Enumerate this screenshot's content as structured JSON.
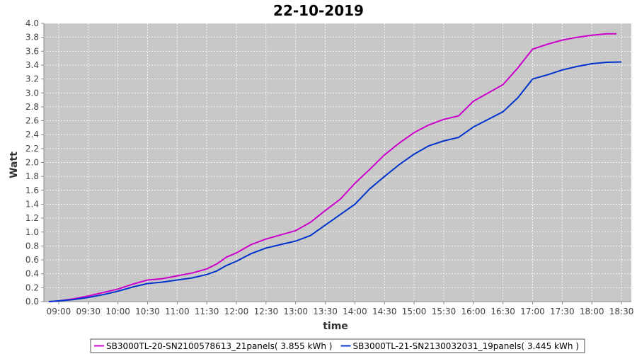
{
  "chart_data": {
    "type": "line",
    "title": "22-10-2019",
    "xlabel": "time",
    "ylabel": "Watt",
    "xlim": [
      "08:45",
      "18:40"
    ],
    "ylim": [
      0,
      4.0
    ],
    "x_ticks": [
      "09:00",
      "09:30",
      "10:00",
      "10:30",
      "11:00",
      "11:30",
      "12:00",
      "12:30",
      "13:00",
      "13:30",
      "14:00",
      "14:30",
      "15:00",
      "15:30",
      "16:00",
      "16:30",
      "17:00",
      "17:30",
      "18:00",
      "18:30"
    ],
    "y_ticks": [
      "0.0",
      "0.2",
      "0.4",
      "0.6",
      "0.8",
      "1.0",
      "1.2",
      "1.4",
      "1.6",
      "1.8",
      "2.0",
      "2.2",
      "2.4",
      "2.6",
      "2.8",
      "3.0",
      "3.2",
      "3.4",
      "3.6",
      "3.8",
      "4.0"
    ],
    "grid": true,
    "legend_position": "bottom",
    "background_color": "#c8c8c8",
    "series": [
      {
        "name": "SB3000TL-20-SN2100578613_21panels( 3.855 kWh )",
        "color": "#cc00cc",
        "x": [
          "08:50",
          "09:00",
          "09:15",
          "09:30",
          "09:45",
          "10:00",
          "10:15",
          "10:30",
          "10:45",
          "11:00",
          "11:15",
          "11:30",
          "11:40",
          "11:50",
          "12:00",
          "12:15",
          "12:30",
          "12:45",
          "13:00",
          "13:15",
          "13:30",
          "13:45",
          "14:00",
          "14:15",
          "14:30",
          "14:45",
          "15:00",
          "15:15",
          "15:30",
          "15:45",
          "16:00",
          "16:15",
          "16:30",
          "16:45",
          "17:00",
          "17:15",
          "17:30",
          "17:45",
          "18:00",
          "18:15",
          "18:25"
        ],
        "values": [
          0.0,
          0.01,
          0.04,
          0.08,
          0.13,
          0.18,
          0.25,
          0.31,
          0.33,
          0.37,
          0.41,
          0.47,
          0.54,
          0.64,
          0.7,
          0.82,
          0.9,
          0.96,
          1.02,
          1.14,
          1.31,
          1.47,
          1.7,
          1.9,
          2.11,
          2.28,
          2.43,
          2.54,
          2.62,
          2.67,
          2.88,
          3.0,
          3.12,
          3.36,
          3.63,
          3.7,
          3.76,
          3.8,
          3.83,
          3.85,
          3.85
        ]
      },
      {
        "name": "SB3000TL-21-SN2130032031_19panels( 3.445 kWh )",
        "color": "#0033cc",
        "x": [
          "08:50",
          "09:00",
          "09:15",
          "09:30",
          "09:45",
          "10:00",
          "10:15",
          "10:30",
          "10:45",
          "11:00",
          "11:15",
          "11:30",
          "11:40",
          "11:50",
          "12:00",
          "12:15",
          "12:30",
          "12:45",
          "13:00",
          "13:15",
          "13:30",
          "13:45",
          "14:00",
          "14:15",
          "14:30",
          "14:45",
          "15:00",
          "15:15",
          "15:30",
          "15:45",
          "16:00",
          "16:15",
          "16:30",
          "16:45",
          "17:00",
          "17:15",
          "17:30",
          "17:45",
          "18:00",
          "18:15",
          "18:30"
        ],
        "values": [
          0.0,
          0.01,
          0.03,
          0.06,
          0.1,
          0.15,
          0.21,
          0.26,
          0.28,
          0.31,
          0.34,
          0.39,
          0.44,
          0.52,
          0.58,
          0.69,
          0.77,
          0.82,
          0.87,
          0.95,
          1.1,
          1.25,
          1.4,
          1.62,
          1.8,
          1.97,
          2.12,
          2.24,
          2.31,
          2.36,
          2.51,
          2.62,
          2.73,
          2.93,
          3.2,
          3.26,
          3.33,
          3.38,
          3.42,
          3.44,
          3.445
        ]
      }
    ]
  }
}
